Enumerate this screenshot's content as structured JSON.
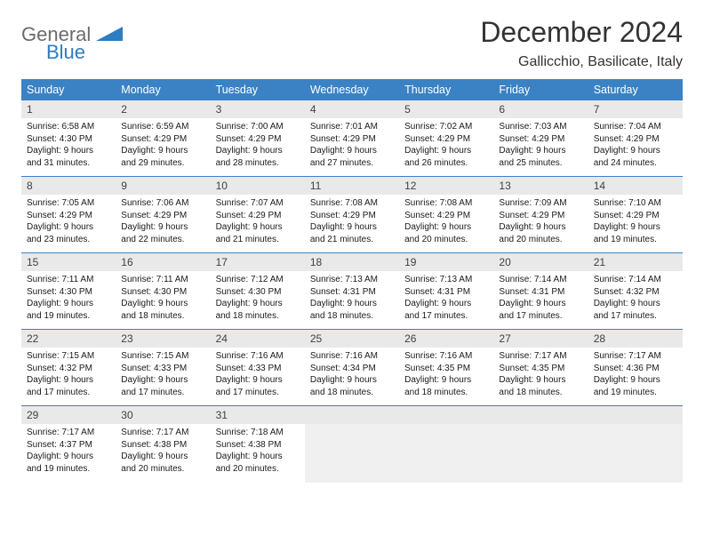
{
  "brand": {
    "general": "General",
    "blue": "Blue"
  },
  "title": "December 2024",
  "location": "Gallicchio, Basilicate, Italy",
  "colors": {
    "header_bg": "#3a82c4",
    "header_text": "#ffffff",
    "daynum_bg": "#e9e9e9",
    "border": "#3a82c4",
    "logo_gray": "#6b6b6b",
    "logo_blue": "#2e7cc2"
  },
  "weekdays": [
    "Sunday",
    "Monday",
    "Tuesday",
    "Wednesday",
    "Thursday",
    "Friday",
    "Saturday"
  ],
  "days": [
    {
      "n": "1",
      "sr": "6:58 AM",
      "ss": "4:30 PM",
      "dl": "9 hours and 31 minutes."
    },
    {
      "n": "2",
      "sr": "6:59 AM",
      "ss": "4:29 PM",
      "dl": "9 hours and 29 minutes."
    },
    {
      "n": "3",
      "sr": "7:00 AM",
      "ss": "4:29 PM",
      "dl": "9 hours and 28 minutes."
    },
    {
      "n": "4",
      "sr": "7:01 AM",
      "ss": "4:29 PM",
      "dl": "9 hours and 27 minutes."
    },
    {
      "n": "5",
      "sr": "7:02 AM",
      "ss": "4:29 PM",
      "dl": "9 hours and 26 minutes."
    },
    {
      "n": "6",
      "sr": "7:03 AM",
      "ss": "4:29 PM",
      "dl": "9 hours and 25 minutes."
    },
    {
      "n": "7",
      "sr": "7:04 AM",
      "ss": "4:29 PM",
      "dl": "9 hours and 24 minutes."
    },
    {
      "n": "8",
      "sr": "7:05 AM",
      "ss": "4:29 PM",
      "dl": "9 hours and 23 minutes."
    },
    {
      "n": "9",
      "sr": "7:06 AM",
      "ss": "4:29 PM",
      "dl": "9 hours and 22 minutes."
    },
    {
      "n": "10",
      "sr": "7:07 AM",
      "ss": "4:29 PM",
      "dl": "9 hours and 21 minutes."
    },
    {
      "n": "11",
      "sr": "7:08 AM",
      "ss": "4:29 PM",
      "dl": "9 hours and 21 minutes."
    },
    {
      "n": "12",
      "sr": "7:08 AM",
      "ss": "4:29 PM",
      "dl": "9 hours and 20 minutes."
    },
    {
      "n": "13",
      "sr": "7:09 AM",
      "ss": "4:29 PM",
      "dl": "9 hours and 20 minutes."
    },
    {
      "n": "14",
      "sr": "7:10 AM",
      "ss": "4:29 PM",
      "dl": "9 hours and 19 minutes."
    },
    {
      "n": "15",
      "sr": "7:11 AM",
      "ss": "4:30 PM",
      "dl": "9 hours and 19 minutes."
    },
    {
      "n": "16",
      "sr": "7:11 AM",
      "ss": "4:30 PM",
      "dl": "9 hours and 18 minutes."
    },
    {
      "n": "17",
      "sr": "7:12 AM",
      "ss": "4:30 PM",
      "dl": "9 hours and 18 minutes."
    },
    {
      "n": "18",
      "sr": "7:13 AM",
      "ss": "4:31 PM",
      "dl": "9 hours and 18 minutes."
    },
    {
      "n": "19",
      "sr": "7:13 AM",
      "ss": "4:31 PM",
      "dl": "9 hours and 17 minutes."
    },
    {
      "n": "20",
      "sr": "7:14 AM",
      "ss": "4:31 PM",
      "dl": "9 hours and 17 minutes."
    },
    {
      "n": "21",
      "sr": "7:14 AM",
      "ss": "4:32 PM",
      "dl": "9 hours and 17 minutes."
    },
    {
      "n": "22",
      "sr": "7:15 AM",
      "ss": "4:32 PM",
      "dl": "9 hours and 17 minutes."
    },
    {
      "n": "23",
      "sr": "7:15 AM",
      "ss": "4:33 PM",
      "dl": "9 hours and 17 minutes."
    },
    {
      "n": "24",
      "sr": "7:16 AM",
      "ss": "4:33 PM",
      "dl": "9 hours and 17 minutes."
    },
    {
      "n": "25",
      "sr": "7:16 AM",
      "ss": "4:34 PM",
      "dl": "9 hours and 18 minutes."
    },
    {
      "n": "26",
      "sr": "7:16 AM",
      "ss": "4:35 PM",
      "dl": "9 hours and 18 minutes."
    },
    {
      "n": "27",
      "sr": "7:17 AM",
      "ss": "4:35 PM",
      "dl": "9 hours and 18 minutes."
    },
    {
      "n": "28",
      "sr": "7:17 AM",
      "ss": "4:36 PM",
      "dl": "9 hours and 19 minutes."
    },
    {
      "n": "29",
      "sr": "7:17 AM",
      "ss": "4:37 PM",
      "dl": "9 hours and 19 minutes."
    },
    {
      "n": "30",
      "sr": "7:17 AM",
      "ss": "4:38 PM",
      "dl": "9 hours and 20 minutes."
    },
    {
      "n": "31",
      "sr": "7:18 AM",
      "ss": "4:38 PM",
      "dl": "9 hours and 20 minutes."
    }
  ],
  "labels": {
    "sunrise": "Sunrise: ",
    "sunset": "Sunset: ",
    "daylight": "Daylight: "
  }
}
